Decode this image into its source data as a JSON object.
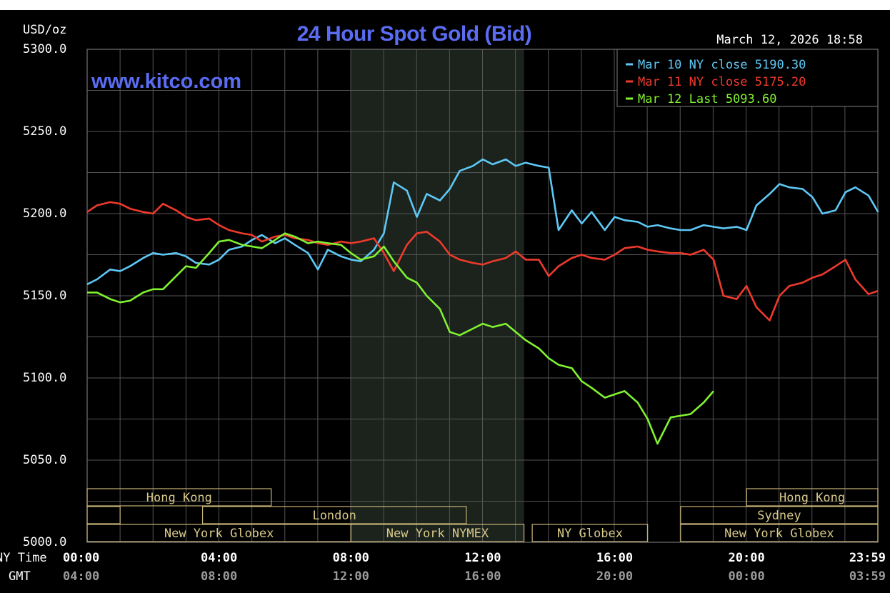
{
  "chart_data": {
    "type": "line",
    "title": "24 Hour Spot Gold (Bid)",
    "site": "www.kitco.com",
    "unit_label": "USD/oz",
    "date_label": "March 12, 2026 18:58",
    "ylim": [
      5000,
      5300
    ],
    "y_ticks": [
      "5300.0",
      "5250.0",
      "5200.0",
      "5150.0",
      "5100.0",
      "5050.0",
      "5000.0"
    ],
    "x_row_label": "NY Time",
    "gmt_row_label": "GMT",
    "x_ticks": [
      "00:00",
      "04:00",
      "08:00",
      "12:00",
      "16:00",
      "20:00",
      "23:59"
    ],
    "gmt_ticks": [
      "04:00",
      "08:00",
      "12:00",
      "16:00",
      "20:00",
      "00:00",
      "03:59"
    ],
    "grid": true,
    "legend_position": "top-right",
    "shaded_region": {
      "start": "08:00",
      "end": "13:15"
    },
    "series": [
      {
        "name": "Mar 10 NY close 5190.30",
        "color": "#5ec8f5",
        "x": [
          0.0,
          0.3,
          0.7,
          1.0,
          1.3,
          1.7,
          2.0,
          2.3,
          2.7,
          3.0,
          3.3,
          3.7,
          4.0,
          4.3,
          4.7,
          5.0,
          5.3,
          5.7,
          6.0,
          6.3,
          6.7,
          7.0,
          7.3,
          7.7,
          8.0,
          8.3,
          8.7,
          9.0,
          9.3,
          9.7,
          10.0,
          10.3,
          10.7,
          11.0,
          11.3,
          11.7,
          12.0,
          12.3,
          12.7,
          13.0,
          13.3,
          13.7,
          14.0,
          14.3,
          14.7,
          15.0,
          15.3,
          15.7,
          16.0,
          16.3,
          16.7,
          17.0,
          17.3,
          17.7,
          18.0,
          18.3,
          18.7,
          19.0,
          19.3,
          19.7,
          20.0,
          20.3,
          20.7,
          21.0,
          21.3,
          21.7,
          22.0,
          22.3,
          22.7,
          23.0,
          23.3,
          23.7,
          23.99
        ],
        "values": [
          5157,
          5160,
          5166,
          5165,
          5168,
          5173,
          5176,
          5175,
          5176,
          5174,
          5170,
          5169,
          5172,
          5178,
          5180,
          5184,
          5187,
          5182,
          5185,
          5181,
          5176,
          5166,
          5178,
          5174,
          5172,
          5171,
          5178,
          5188,
          5219,
          5214,
          5198,
          5212,
          5208,
          5215,
          5226,
          5229,
          5233,
          5230,
          5233,
          5229,
          5231,
          5229,
          5228,
          5190,
          5202,
          5194,
          5201,
          5190,
          5198,
          5196,
          5195,
          5192,
          5193,
          5191,
          5190,
          5190,
          5193,
          5192,
          5191,
          5192,
          5190,
          5205,
          5212,
          5218,
          5216,
          5215,
          5210,
          5200,
          5202,
          5213,
          5216,
          5211,
          5201
        ]
      },
      {
        "name": "Mar 11 NY close 5175.20",
        "color": "#ee3a2c",
        "x": [
          0.0,
          0.3,
          0.7,
          1.0,
          1.3,
          1.7,
          2.0,
          2.3,
          2.7,
          3.0,
          3.3,
          3.7,
          4.0,
          4.3,
          4.7,
          5.0,
          5.3,
          5.7,
          6.0,
          6.3,
          6.7,
          7.0,
          7.3,
          7.7,
          8.0,
          8.3,
          8.7,
          9.0,
          9.3,
          9.7,
          10.0,
          10.3,
          10.7,
          11.0,
          11.3,
          11.7,
          12.0,
          12.3,
          12.7,
          13.0,
          13.3,
          13.7,
          14.0,
          14.3,
          14.7,
          15.0,
          15.3,
          15.7,
          16.0,
          16.3,
          16.7,
          17.0,
          17.3,
          17.7,
          18.0,
          18.3,
          18.7,
          19.0,
          19.3,
          19.7,
          20.0,
          20.3,
          20.7,
          21.0,
          21.3,
          21.7,
          22.0,
          22.3,
          22.7,
          23.0,
          23.3,
          23.7,
          23.99
        ],
        "values": [
          5201,
          5205,
          5207,
          5206,
          5203,
          5201,
          5200,
          5206,
          5202,
          5198,
          5196,
          5197,
          5193,
          5190,
          5188,
          5187,
          5183,
          5186,
          5187,
          5185,
          5184,
          5182,
          5181,
          5183,
          5182,
          5183,
          5185,
          5176,
          5165,
          5181,
          5188,
          5189,
          5183,
          5175,
          5172,
          5170,
          5169,
          5171,
          5173,
          5177,
          5172,
          5172,
          5162,
          5168,
          5173,
          5175,
          5173,
          5172,
          5175,
          5179,
          5180,
          5178,
          5177,
          5176,
          5176,
          5175,
          5178,
          5172,
          5150,
          5148,
          5156,
          5143,
          5135,
          5150,
          5156,
          5158,
          5161,
          5163,
          5168,
          5172,
          5160,
          5151,
          5153
        ]
      },
      {
        "name": "Mar 12 Last 5093.60",
        "color": "#80f231",
        "x": [
          0.0,
          0.3,
          0.7,
          1.0,
          1.3,
          1.7,
          2.0,
          2.3,
          2.7,
          3.0,
          3.3,
          3.7,
          4.0,
          4.3,
          4.7,
          5.0,
          5.3,
          5.7,
          6.0,
          6.3,
          6.7,
          7.0,
          7.3,
          7.7,
          8.0,
          8.3,
          8.7,
          9.0,
          9.3,
          9.7,
          10.0,
          10.3,
          10.7,
          11.0,
          11.3,
          11.7,
          12.0,
          12.3,
          12.7,
          13.0,
          13.3,
          13.7,
          14.0,
          14.3,
          14.7,
          15.0,
          15.3,
          15.7,
          16.0,
          16.3,
          16.7,
          17.0,
          17.3,
          17.7,
          18.0,
          18.3,
          18.7,
          19.0
        ],
        "values": [
          5152,
          5152,
          5148,
          5146,
          5147,
          5152,
          5154,
          5154,
          5162,
          5168,
          5167,
          5176,
          5183,
          5184,
          5181,
          5180,
          5179,
          5184,
          5188,
          5186,
          5182,
          5183,
          5182,
          5181,
          5176,
          5172,
          5174,
          5180,
          5171,
          5161,
          5158,
          5150,
          5142,
          5128,
          5126,
          5130,
          5133,
          5131,
          5133,
          5128,
          5123,
          5118,
          5112,
          5108,
          5106,
          5098,
          5094,
          5088,
          5090,
          5092,
          5085,
          5075,
          5060,
          5076,
          5077,
          5078,
          5085,
          5092
        ]
      }
    ],
    "sessions": {
      "row1": [
        {
          "label": "Hong Kong",
          "start": "00:00",
          "end": "05:35"
        },
        {
          "label": "Hong Kong",
          "start": "20:00",
          "end": "23:59"
        }
      ],
      "row2": [
        {
          "label": "",
          "start": "00:00",
          "end": "01:00"
        },
        {
          "label": "London",
          "start": "03:30",
          "end": "11:30"
        },
        {
          "label": "Sydney",
          "start": "18:00",
          "end": "23:59"
        }
      ],
      "row3": [
        {
          "label": "New York Globex",
          "start": "00:00",
          "end": "08:00"
        },
        {
          "label": "New York NYMEX",
          "start": "08:00",
          "end": "13:15"
        },
        {
          "label": "NY Globex",
          "start": "13:30",
          "end": "17:00"
        },
        {
          "label": "New York Globex",
          "start": "18:00",
          "end": "23:59"
        }
      ]
    }
  }
}
